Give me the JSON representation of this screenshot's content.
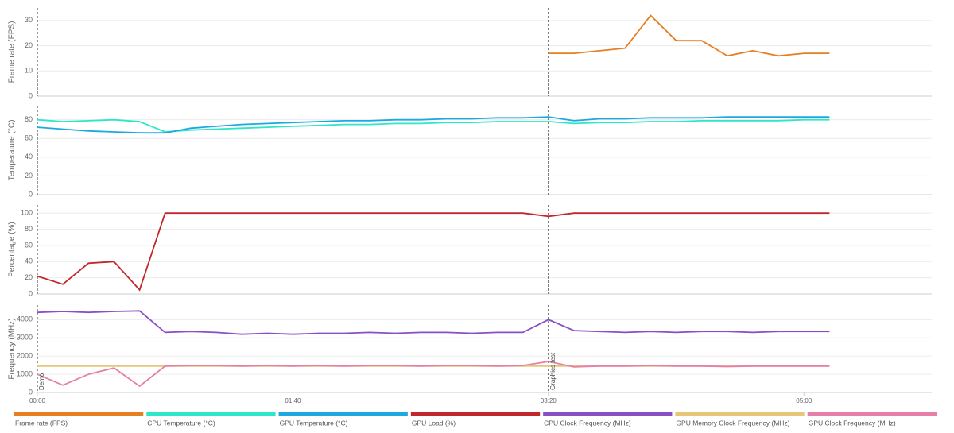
{
  "chart_data": [
    {
      "type": "line",
      "ylabel": "Frame rate (FPS)",
      "xlim": [
        0,
        350
      ],
      "ylim": [
        0,
        35
      ],
      "yticks": [
        0,
        10,
        20,
        30
      ],
      "grid": true,
      "x": [
        0,
        10,
        20,
        30,
        40,
        50,
        60,
        70,
        80,
        90,
        100,
        110,
        120,
        130,
        140,
        150,
        160,
        170,
        180,
        190,
        200,
        210,
        220,
        230,
        240,
        250,
        260,
        270,
        280,
        290,
        300,
        310
      ],
      "series": [
        {
          "name": "Frame rate (FPS)",
          "color": "#e67e22",
          "values": [
            null,
            null,
            null,
            null,
            null,
            null,
            null,
            null,
            null,
            null,
            null,
            null,
            null,
            null,
            null,
            null,
            null,
            null,
            null,
            null,
            17,
            17,
            18,
            19,
            32,
            22,
            22,
            16,
            18,
            16,
            17,
            17
          ]
        }
      ]
    },
    {
      "type": "line",
      "ylabel": "Temperature (°C)",
      "xlim": [
        0,
        350
      ],
      "ylim": [
        0,
        95
      ],
      "yticks": [
        0,
        20,
        40,
        60,
        80
      ],
      "grid": true,
      "x": [
        0,
        10,
        20,
        30,
        40,
        50,
        60,
        70,
        80,
        90,
        100,
        110,
        120,
        130,
        140,
        150,
        160,
        170,
        180,
        190,
        200,
        210,
        220,
        230,
        240,
        250,
        260,
        270,
        280,
        290,
        300,
        310
      ],
      "series": [
        {
          "name": "CPU Temperature (°C)",
          "color": "#2ee6c8",
          "values": [
            80,
            78,
            79,
            80,
            78,
            67,
            69,
            70,
            71,
            72,
            73,
            74,
            75,
            75,
            76,
            76,
            77,
            77,
            78,
            78,
            78,
            76,
            77,
            77,
            78,
            78,
            79,
            79,
            79,
            79,
            80,
            80
          ]
        },
        {
          "name": "GPU Temperature (°C)",
          "color": "#1ea8e0",
          "values": [
            72,
            70,
            68,
            67,
            66,
            66,
            71,
            73,
            75,
            76,
            77,
            78,
            79,
            79,
            80,
            80,
            81,
            81,
            82,
            82,
            83,
            79,
            81,
            81,
            82,
            82,
            82,
            83,
            83,
            83,
            83,
            83
          ]
        }
      ]
    },
    {
      "type": "line",
      "ylabel": "Percentage (%)",
      "xlim": [
        0,
        350
      ],
      "ylim": [
        0,
        110
      ],
      "yticks": [
        0,
        20,
        40,
        60,
        80,
        100
      ],
      "grid": true,
      "x": [
        0,
        10,
        20,
        30,
        40,
        50,
        60,
        70,
        80,
        90,
        100,
        110,
        120,
        130,
        140,
        150,
        160,
        170,
        180,
        190,
        200,
        210,
        220,
        230,
        240,
        250,
        260,
        270,
        280,
        290,
        300,
        310
      ],
      "series": [
        {
          "name": "GPU Load (%)",
          "color": "#c0282d",
          "values": [
            22,
            12,
            38,
            40,
            5,
            100,
            100,
            100,
            100,
            100,
            100,
            100,
            100,
            100,
            100,
            100,
            100,
            100,
            100,
            100,
            96,
            100,
            100,
            100,
            100,
            100,
            100,
            100,
            100,
            100,
            100,
            100
          ]
        }
      ]
    },
    {
      "type": "line",
      "ylabel": "Frequency (MHz)",
      "xlim": [
        0,
        350
      ],
      "ylim": [
        0,
        4800
      ],
      "yticks": [
        0,
        1000,
        2000,
        3000,
        4000
      ],
      "grid": true,
      "x": [
        0,
        10,
        20,
        30,
        40,
        50,
        60,
        70,
        80,
        90,
        100,
        110,
        120,
        130,
        140,
        150,
        160,
        170,
        180,
        190,
        200,
        210,
        220,
        230,
        240,
        250,
        260,
        270,
        280,
        290,
        300,
        310
      ],
      "xticks": [
        {
          "value": 0,
          "label": "00:00"
        },
        {
          "value": 100,
          "label": "01:40"
        },
        {
          "value": 200,
          "label": "03:20"
        },
        {
          "value": 300,
          "label": "05:00"
        }
      ],
      "markers": [
        {
          "x": 0,
          "label": "Demo"
        },
        {
          "x": 200,
          "label": "Graphics test"
        }
      ],
      "series": [
        {
          "name": "CPU Clock Frequency (MHz)",
          "color": "#8b4fc4",
          "values": [
            4400,
            4450,
            4400,
            4450,
            4480,
            3300,
            3350,
            3300,
            3200,
            3250,
            3200,
            3250,
            3250,
            3300,
            3250,
            3300,
            3300,
            3250,
            3300,
            3300,
            4000,
            3400,
            3350,
            3300,
            3350,
            3300,
            3350,
            3350,
            3300,
            3350,
            3350,
            3350
          ]
        },
        {
          "name": "GPU Memory Clock Frequency (MHz)",
          "color": "#e6c77a",
          "values": [
            1450,
            1450,
            1450,
            1450,
            1450,
            1450,
            1450,
            1450,
            1450,
            1450,
            1450,
            1450,
            1450,
            1450,
            1450,
            1450,
            1450,
            1450,
            1450,
            1450,
            1450,
            1450,
            1450,
            1450,
            1450,
            1450,
            1450,
            1450,
            1450,
            1450,
            1450,
            1450
          ]
        },
        {
          "name": "GPU Clock Frequency (MHz)",
          "color": "#e67fa8",
          "values": [
            1000,
            400,
            1000,
            1350,
            350,
            1450,
            1480,
            1480,
            1450,
            1480,
            1450,
            1480,
            1450,
            1480,
            1480,
            1450,
            1480,
            1480,
            1450,
            1480,
            1700,
            1400,
            1450,
            1450,
            1480,
            1450,
            1450,
            1420,
            1450,
            1450,
            1450,
            1450
          ]
        }
      ]
    }
  ]
}
